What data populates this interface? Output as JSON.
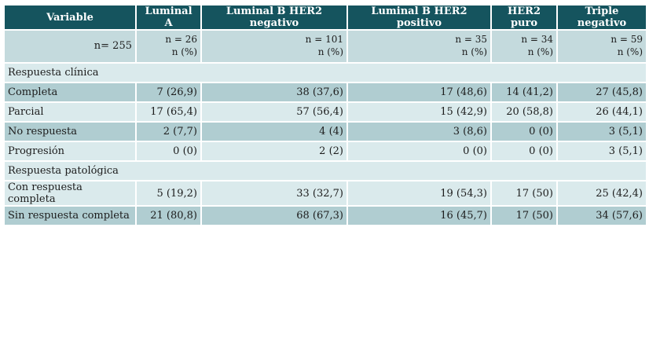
{
  "header": [
    "Variable",
    "Luminal A",
    "Luminal B HER2 negativo",
    "Luminal B HER2 positivo",
    "HER2 puro",
    "Triple negativo"
  ],
  "n_row": {
    "total": "n= 255",
    "groups": [
      {
        "n": "n = 26",
        "unit": "n (%)"
      },
      {
        "n": "n = 101",
        "unit": "n (%)"
      },
      {
        "n": "n = 35",
        "unit": "n (%)"
      },
      {
        "n": "n = 34",
        "unit": "n (%)"
      },
      {
        "n": "n = 59",
        "unit": "n (%)"
      }
    ]
  },
  "sections": [
    {
      "title": "Respuesta clínica",
      "rows": [
        {
          "label": "Completa",
          "values": [
            "7 (26,9)",
            "38 (37,6)",
            "17 (48,6)",
            "14 (41,2)",
            "27 (45,8)"
          ]
        },
        {
          "label": "Parcial",
          "values": [
            "17 (65,4)",
            "57 (56,4)",
            "15 (42,9)",
            "20 (58,8)",
            "26 (44,1)"
          ]
        },
        {
          "label": "No respuesta",
          "values": [
            "2 (7,7)",
            "4 (4)",
            "3 (8,6)",
            "0 (0)",
            "3 (5,1)"
          ]
        },
        {
          "label": "Progresión",
          "values": [
            "0 (0)",
            "2 (2)",
            "0 (0)",
            "0 (0)",
            "3 (5,1)"
          ]
        }
      ]
    },
    {
      "title": "Respuesta patológica",
      "rows": [
        {
          "label": "Con respuesta completa",
          "values": [
            "5 (19,2)",
            "33 (32,7)",
            "19 (54,3)",
            "17 (50)",
            "25 (42,4)"
          ]
        },
        {
          "label": "Sin respuesta completa",
          "values": [
            "21 (80,8)",
            "68 (67,3)",
            "16 (45,7)",
            "17 (50)",
            "34 (57,6)"
          ]
        }
      ]
    }
  ]
}
